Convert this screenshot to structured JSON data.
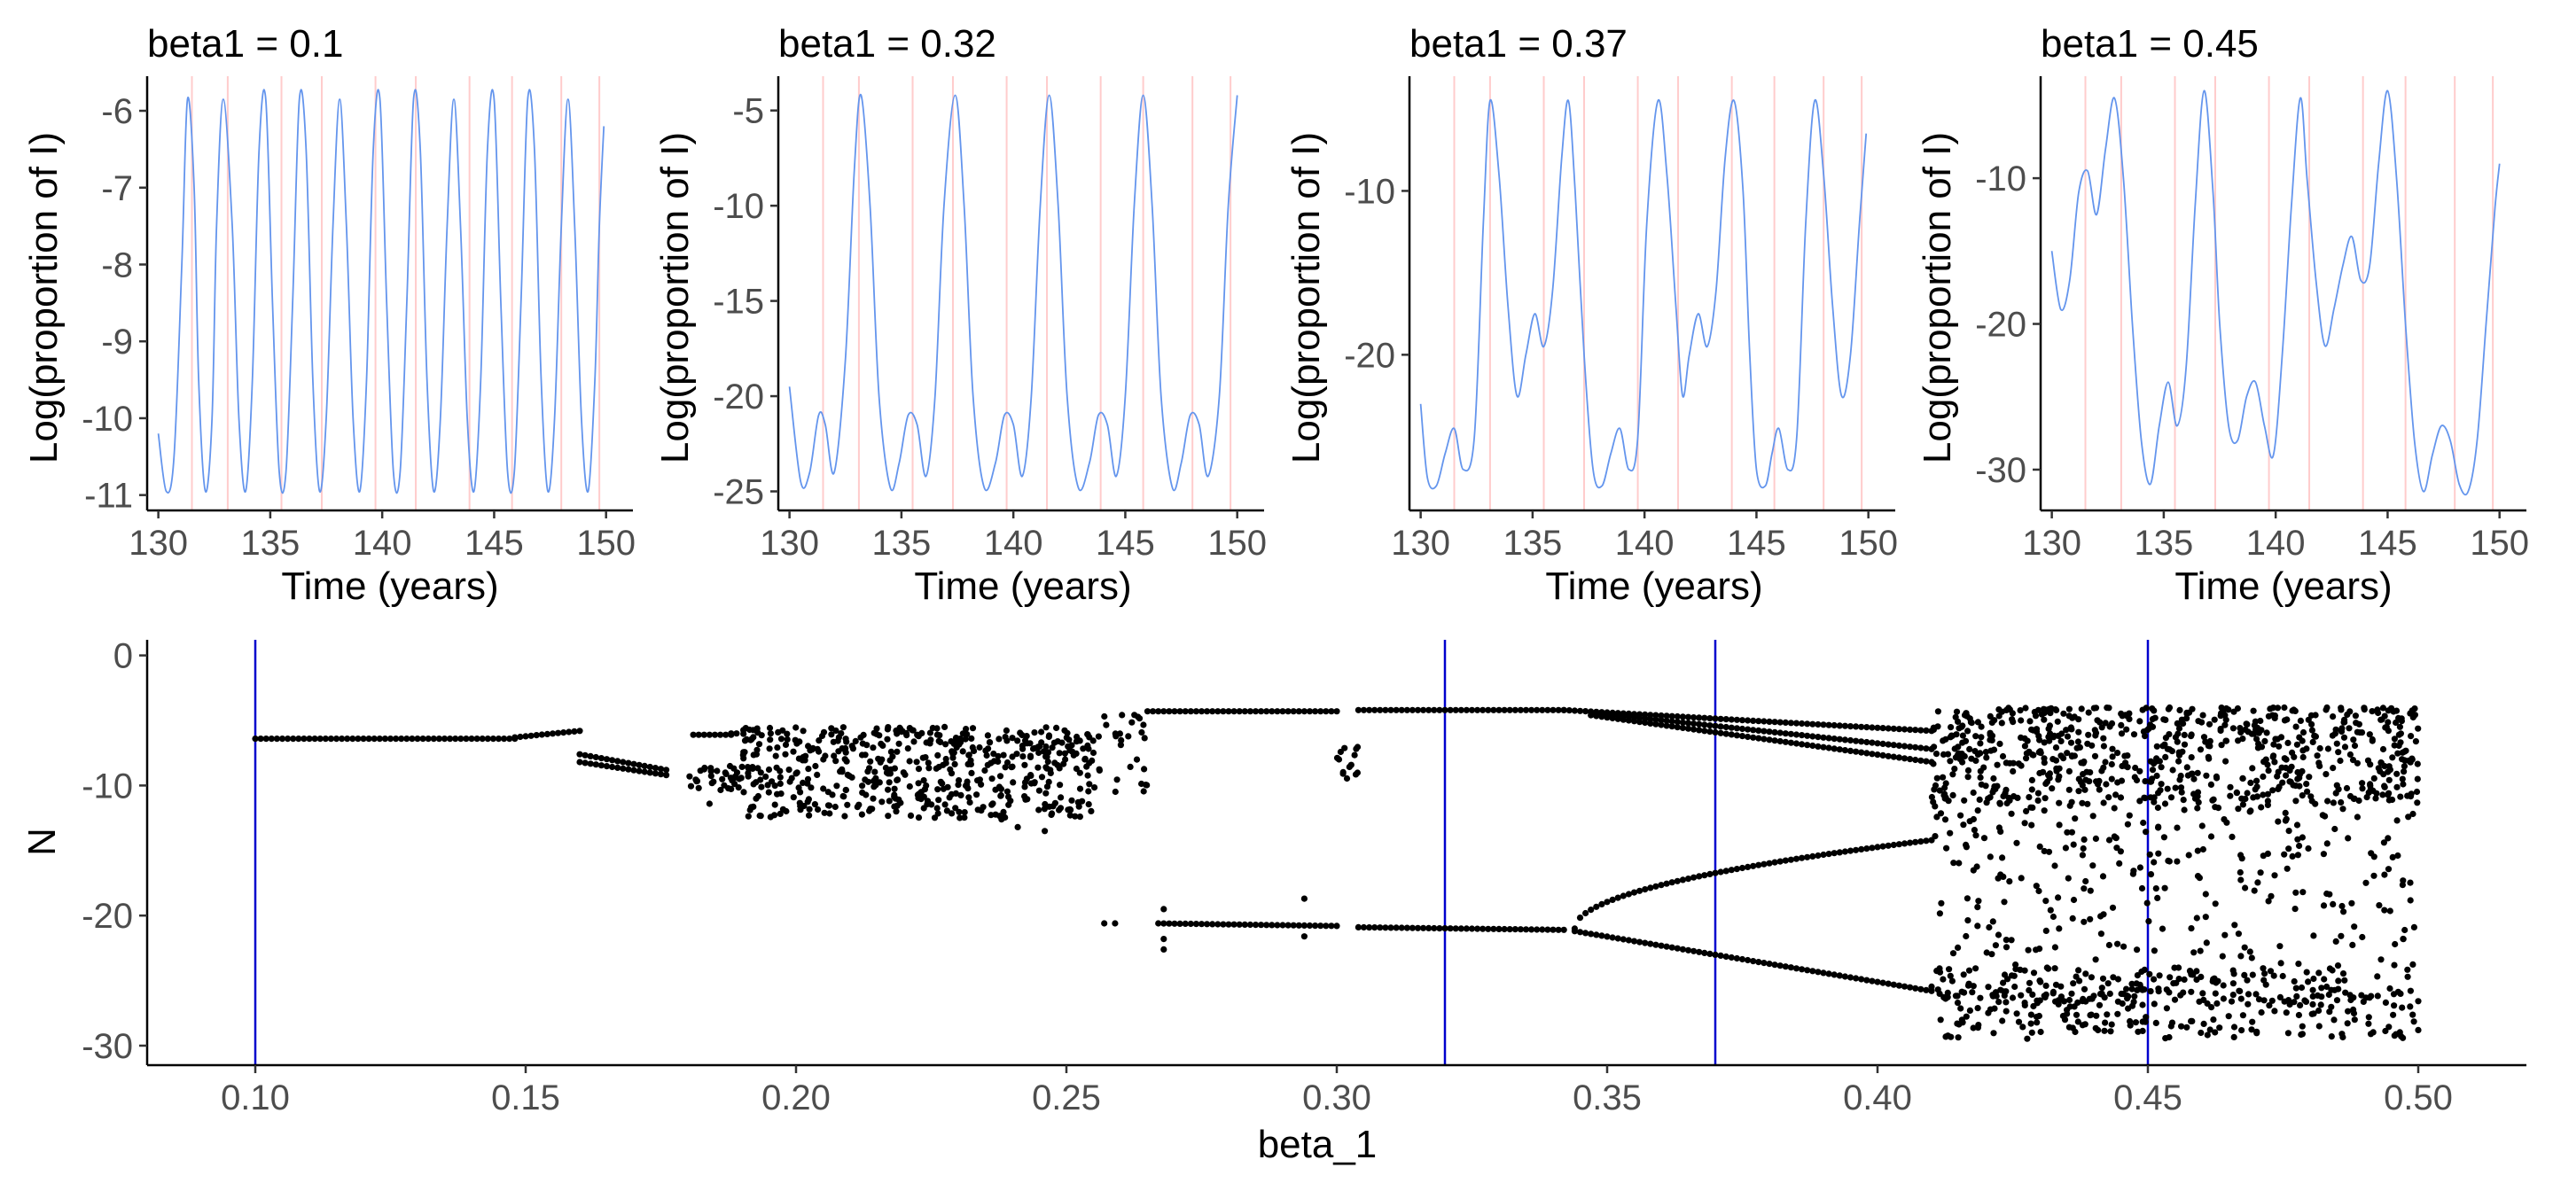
{
  "chart_data": [
    {
      "type": "line",
      "title": "beta1 = 0.1",
      "xlabel": "Time (years)",
      "ylabel": "Log(proportion of I)",
      "xlim": [
        129.5,
        151.2
      ],
      "ylim": [
        -11.2,
        -5.55
      ],
      "xticks": [
        130,
        135,
        140,
        145,
        150
      ],
      "xtick_labels": [
        "130",
        "135",
        "140",
        "145",
        "150"
      ],
      "yticks": [
        -11,
        -10,
        -9,
        -8,
        -7,
        -6
      ],
      "ytick_labels": [
        "-11",
        "-10",
        "-9",
        "-8",
        "-7",
        "-6"
      ],
      "vlines": [
        131.5,
        133.1,
        135.5,
        137.3,
        139.7,
        141.5,
        143.9,
        145.8,
        148.0,
        149.7
      ],
      "vline_color": "#ffcccc",
      "series": [
        {
          "color": "#6495ed",
          "x": [
            130.0,
            130.35,
            130.7,
            131.05,
            131.3,
            131.6,
            131.8,
            132.1,
            132.4,
            132.6,
            132.9,
            133.3,
            133.6,
            133.9,
            134.2,
            134.5,
            134.8,
            135.1,
            135.4,
            135.7,
            136.0,
            136.3,
            136.6,
            136.9,
            137.2,
            137.5,
            137.8,
            138.1,
            138.4,
            138.7,
            139.0,
            139.3,
            139.6,
            139.9,
            140.2,
            140.5,
            140.8,
            141.1,
            141.4,
            141.7,
            142.0,
            142.3,
            142.6,
            142.9,
            143.2,
            143.5,
            143.8,
            144.1,
            144.4,
            144.7,
            145.0,
            145.3,
            145.6,
            145.9,
            146.2,
            146.5,
            146.8,
            147.1,
            147.4,
            147.7,
            148.0,
            148.3,
            148.6,
            148.9,
            149.2,
            149.5,
            149.7,
            149.9
          ],
          "y": [
            -10.2,
            -10.95,
            -10.5,
            -8.0,
            -5.85,
            -7.0,
            -9.5,
            -10.95,
            -10.0,
            -7.5,
            -5.85,
            -7.5,
            -10.0,
            -10.95,
            -9.5,
            -6.5,
            -5.85,
            -8.5,
            -10.7,
            -10.7,
            -8.5,
            -5.85,
            -6.5,
            -9.5,
            -10.95,
            -10.0,
            -7.5,
            -5.85,
            -7.5,
            -10.0,
            -10.95,
            -9.5,
            -6.5,
            -5.85,
            -8.5,
            -10.7,
            -10.7,
            -8.5,
            -5.85,
            -6.5,
            -9.5,
            -10.95,
            -10.0,
            -7.5,
            -5.85,
            -7.5,
            -10.0,
            -10.95,
            -9.5,
            -6.5,
            -5.85,
            -8.5,
            -10.7,
            -10.7,
            -8.5,
            -5.85,
            -6.5,
            -9.5,
            -10.95,
            -10.0,
            -7.5,
            -5.85,
            -7.5,
            -10.0,
            -10.95,
            -9.5,
            -7.5,
            -6.2
          ]
        }
      ]
    },
    {
      "type": "line",
      "title": "beta1 = 0.32",
      "xlabel": "Time (years)",
      "ylabel": "Log(proportion of I)",
      "xlim": [
        129.5,
        151.2
      ],
      "ylim": [
        -26.0,
        -3.2
      ],
      "xticks": [
        130,
        135,
        140,
        145,
        150
      ],
      "xtick_labels": [
        "130",
        "135",
        "140",
        "145",
        "150"
      ],
      "yticks": [
        -25,
        -20,
        -15,
        -10,
        -5
      ],
      "ytick_labels": [
        "-25",
        "-20",
        "-15",
        "-10",
        "-5"
      ],
      "vlines": [
        131.5,
        133.1,
        135.5,
        137.3,
        139.7,
        141.5,
        143.9,
        145.8,
        148.0,
        149.7
      ],
      "vline_color": "#ffcccc",
      "series": [
        {
          "color": "#6495ed",
          "x": [
            130.0,
            130.5,
            130.9,
            131.3,
            131.6,
            132.0,
            132.5,
            132.9,
            133.2,
            133.6,
            134.0,
            134.5,
            134.9,
            135.3,
            135.7,
            136.1,
            136.5,
            136.9,
            137.4,
            137.8,
            138.2,
            138.7,
            139.2,
            139.6,
            140.0,
            140.4,
            140.8,
            141.2,
            141.6,
            142.0,
            142.4,
            142.9,
            143.4,
            143.8,
            144.2,
            144.6,
            145.0,
            145.4,
            145.8,
            146.2,
            146.6,
            147.1,
            147.5,
            147.9,
            148.3,
            148.7,
            149.2,
            149.6,
            150.0
          ],
          "y": [
            -19.5,
            -24.5,
            -24.0,
            -21.0,
            -21.5,
            -24.0,
            -18.0,
            -8.0,
            -4.2,
            -10.0,
            -20.0,
            -24.8,
            -23.5,
            -21.0,
            -21.5,
            -24.2,
            -20.0,
            -10.0,
            -4.2,
            -10.0,
            -20.0,
            -24.8,
            -23.5,
            -21.0,
            -21.5,
            -24.2,
            -20.0,
            -10.0,
            -4.2,
            -10.0,
            -20.0,
            -24.8,
            -23.5,
            -21.0,
            -21.5,
            -24.2,
            -20.0,
            -10.0,
            -4.2,
            -10.0,
            -20.0,
            -24.8,
            -23.5,
            -21.0,
            -21.5,
            -24.2,
            -20.0,
            -10.0,
            -4.2
          ]
        }
      ]
    },
    {
      "type": "line",
      "title": "beta1 = 0.37",
      "xlabel": "Time (years)",
      "ylabel": "Log(proportion of I)",
      "xlim": [
        129.5,
        151.2
      ],
      "ylim": [
        -29.5,
        -3.0
      ],
      "xticks": [
        130,
        135,
        140,
        145,
        150
      ],
      "xtick_labels": [
        "130",
        "135",
        "140",
        "145",
        "150"
      ],
      "yticks": [
        -20,
        -10
      ],
      "ytick_labels": [
        "-20",
        "-10"
      ],
      "vlines": [
        131.5,
        133.1,
        135.5,
        137.3,
        139.7,
        141.5,
        143.9,
        145.8,
        148.0,
        149.7
      ],
      "vline_color": "#ffcccc",
      "series": [
        {
          "color": "#6495ed",
          "x": [
            130.0,
            130.3,
            130.7,
            131.1,
            131.5,
            131.9,
            132.4,
            132.8,
            133.1,
            133.5,
            133.9,
            134.3,
            134.7,
            135.1,
            135.5,
            135.9,
            136.3,
            136.6,
            136.9,
            137.3,
            137.7,
            138.1,
            138.5,
            138.9,
            139.3,
            139.7,
            140.1,
            140.6,
            141.0,
            141.4,
            141.7,
            142.0,
            142.4,
            142.8,
            143.2,
            143.6,
            144.0,
            144.4,
            144.7,
            145.0,
            145.4,
            145.7,
            146.0,
            146.4,
            146.8,
            147.2,
            147.6,
            148.0,
            148.4,
            148.8,
            149.2,
            149.6,
            149.9
          ],
          "y": [
            -23.0,
            -27.5,
            -28.0,
            -26.0,
            -24.5,
            -27.0,
            -25.0,
            -12.0,
            -4.5,
            -9.0,
            -17.0,
            -22.5,
            -20.0,
            -17.5,
            -19.5,
            -16.0,
            -8.0,
            -4.5,
            -10.0,
            -20.0,
            -27.0,
            -28.0,
            -26.0,
            -24.5,
            -27.0,
            -25.0,
            -12.0,
            -4.5,
            -9.0,
            -17.0,
            -22.5,
            -20.0,
            -17.5,
            -19.5,
            -16.0,
            -8.0,
            -4.5,
            -10.0,
            -20.0,
            -27.0,
            -28.0,
            -26.0,
            -24.5,
            -27.0,
            -25.0,
            -12.0,
            -4.5,
            -9.0,
            -17.0,
            -22.5,
            -20.0,
            -12.0,
            -6.5
          ]
        }
      ]
    },
    {
      "type": "line",
      "title": "beta1 = 0.45",
      "xlabel": "Time (years)",
      "ylabel": "Log(proportion of I)",
      "xlim": [
        129.5,
        151.2
      ],
      "ylim": [
        -32.8,
        -3.0
      ],
      "xticks": [
        130,
        135,
        140,
        145,
        150
      ],
      "xtick_labels": [
        "130",
        "135",
        "140",
        "145",
        "150"
      ],
      "yticks": [
        -30,
        -20,
        -10
      ],
      "ytick_labels": [
        "-30",
        "-20",
        "-10"
      ],
      "vlines": [
        131.5,
        133.1,
        135.5,
        137.3,
        139.7,
        141.5,
        143.9,
        145.8,
        148.0,
        149.7
      ],
      "vline_color": "#ffcccc",
      "series": [
        {
          "color": "#6495ed",
          "x": [
            130.0,
            130.4,
            130.8,
            131.2,
            131.6,
            132.0,
            132.4,
            132.8,
            133.2,
            133.6,
            134.0,
            134.4,
            134.8,
            135.2,
            135.6,
            136.0,
            136.4,
            136.8,
            137.2,
            137.5,
            137.9,
            138.3,
            138.7,
            139.1,
            139.5,
            139.9,
            140.3,
            140.7,
            141.1,
            141.4,
            141.8,
            142.2,
            142.6,
            143.0,
            143.4,
            143.8,
            144.2,
            144.6,
            145.0,
            145.4,
            145.8,
            146.2,
            146.6,
            147.0,
            147.4,
            147.8,
            148.2,
            148.6,
            149.0,
            149.4,
            149.8,
            150.0
          ],
          "y": [
            -15.0,
            -19.0,
            -17.0,
            -11.0,
            -9.5,
            -12.5,
            -8.0,
            -4.5,
            -10.0,
            -20.0,
            -28.0,
            -31.0,
            -27.0,
            -24.0,
            -27.0,
            -23.0,
            -12.0,
            -4.0,
            -11.0,
            -20.0,
            -27.0,
            -28.0,
            -25.0,
            -24.0,
            -27.0,
            -29.0,
            -22.0,
            -12.0,
            -4.5,
            -10.0,
            -17.0,
            -21.5,
            -19.0,
            -16.0,
            -14.0,
            -17.0,
            -16.0,
            -9.0,
            -4.0,
            -10.0,
            -20.0,
            -28.0,
            -31.5,
            -29.0,
            -27.0,
            -28.0,
            -31.0,
            -31.5,
            -28.0,
            -20.0,
            -12.0,
            -9.0
          ]
        }
      ]
    },
    {
      "type": "scatter",
      "title": "",
      "xlabel": "beta_1",
      "ylabel": "N",
      "xlim": [
        0.08,
        0.52
      ],
      "ylim": [
        -31.5,
        1.2
      ],
      "xticks": [
        0.1,
        0.15,
        0.2,
        0.25,
        0.3,
        0.35,
        0.4,
        0.45,
        0.5
      ],
      "xtick_labels": [
        "0.10",
        "0.15",
        "0.20",
        "0.25",
        "0.30",
        "0.35",
        "0.40",
        "0.45",
        "0.50"
      ],
      "yticks": [
        -30,
        -20,
        -10,
        0
      ],
      "ytick_labels": [
        "-30",
        "-20",
        "-10",
        "0"
      ],
      "vlines": [
        0.1,
        0.32,
        0.37,
        0.45
      ],
      "vline_color": "#0000cd",
      "point_color": "#000000",
      "branches": [
        {
          "x0": 0.1,
          "x1": 0.148,
          "y0": -6.4,
          "y1": -6.4,
          "step": 0.001
        },
        {
          "x0": 0.148,
          "x1": 0.16,
          "y0": -6.3,
          "y1": -5.8,
          "step": 0.001
        },
        {
          "x0": 0.16,
          "x1": 0.176,
          "y0": -7.6,
          "y1": -8.8,
          "step": 0.001
        },
        {
          "x0": 0.16,
          "x1": 0.176,
          "y0": -8.2,
          "y1": -9.2,
          "step": 0.001
        },
        {
          "x0": 0.181,
          "x1": 0.188,
          "y0": -6.1,
          "y1": -6.1,
          "step": 0.001
        },
        {
          "x0": 0.189,
          "x1": 0.188,
          "y0": -6.0,
          "y1": -6.0,
          "step": 0.001
        },
        {
          "x0": 0.265,
          "x1": 0.3,
          "y0": -4.3,
          "y1": -4.3,
          "step": 0.001
        },
        {
          "x0": 0.267,
          "x1": 0.3,
          "y0": -20.6,
          "y1": -20.8,
          "step": 0.001
        },
        {
          "x0": 0.304,
          "x1": 0.342,
          "y0": -4.2,
          "y1": -4.2,
          "step": 0.001
        },
        {
          "x0": 0.304,
          "x1": 0.342,
          "y0": -20.9,
          "y1": -21.1,
          "step": 0.001
        },
        {
          "x0": 0.342,
          "x1": 0.41,
          "y0": -4.2,
          "y1": -5.8,
          "step": 0.001
        },
        {
          "x0": 0.347,
          "x1": 0.41,
          "y0": -4.4,
          "y1": -7.2,
          "step": 0.001
        },
        {
          "x0": 0.347,
          "x1": 0.41,
          "y0": -4.6,
          "y1": -8.2,
          "step": 0.001
        },
        {
          "x0": 0.344,
          "x1": 0.41,
          "y0": -21.0,
          "y1": -14.2,
          "step": 0.001
        },
        {
          "x0": 0.344,
          "x1": 0.41,
          "y0": -21.2,
          "y1": -25.8,
          "step": 0.001
        },
        {
          "x0": 0.41,
          "x1": 0.5,
          "y0": -26.0,
          "y1": -26.5,
          "step": 0.0015
        }
      ],
      "scatter_regions": [
        {
          "x0": 0.19,
          "x1": 0.255,
          "y0": -5.5,
          "y1": -12.5,
          "n": 520
        },
        {
          "x0": 0.255,
          "x1": 0.265,
          "y0": -4.5,
          "y1": -10.5,
          "n": 30
        },
        {
          "x0": 0.18,
          "x1": 0.192,
          "y0": -8.5,
          "y1": -10.5,
          "n": 40
        },
        {
          "x0": 0.3,
          "x1": 0.304,
          "y0": -7.0,
          "y1": -9.5,
          "n": 14
        },
        {
          "x0": 0.41,
          "x1": 0.5,
          "y0": -4.0,
          "y1": -11.5,
          "n": 700
        },
        {
          "x0": 0.41,
          "x1": 0.5,
          "y0": -11.5,
          "y1": -24.0,
          "n": 260
        },
        {
          "x0": 0.41,
          "x1": 0.5,
          "y0": -24.0,
          "y1": -29.5,
          "n": 320
        }
      ],
      "points": [
        {
          "x": 0.257,
          "y": -20.6
        },
        {
          "x": 0.259,
          "y": -20.6
        },
        {
          "x": 0.268,
          "y": -19.5
        },
        {
          "x": 0.268,
          "y": -21.8
        },
        {
          "x": 0.268,
          "y": -22.6
        },
        {
          "x": 0.294,
          "y": -18.7
        },
        {
          "x": 0.294,
          "y": -21.6
        },
        {
          "x": 0.184,
          "y": -11.4
        },
        {
          "x": 0.182,
          "y": -10.2
        },
        {
          "x": 0.246,
          "y": -13.5
        },
        {
          "x": 0.241,
          "y": -13.2
        },
        {
          "x": 0.238,
          "y": -12.6
        }
      ]
    }
  ]
}
